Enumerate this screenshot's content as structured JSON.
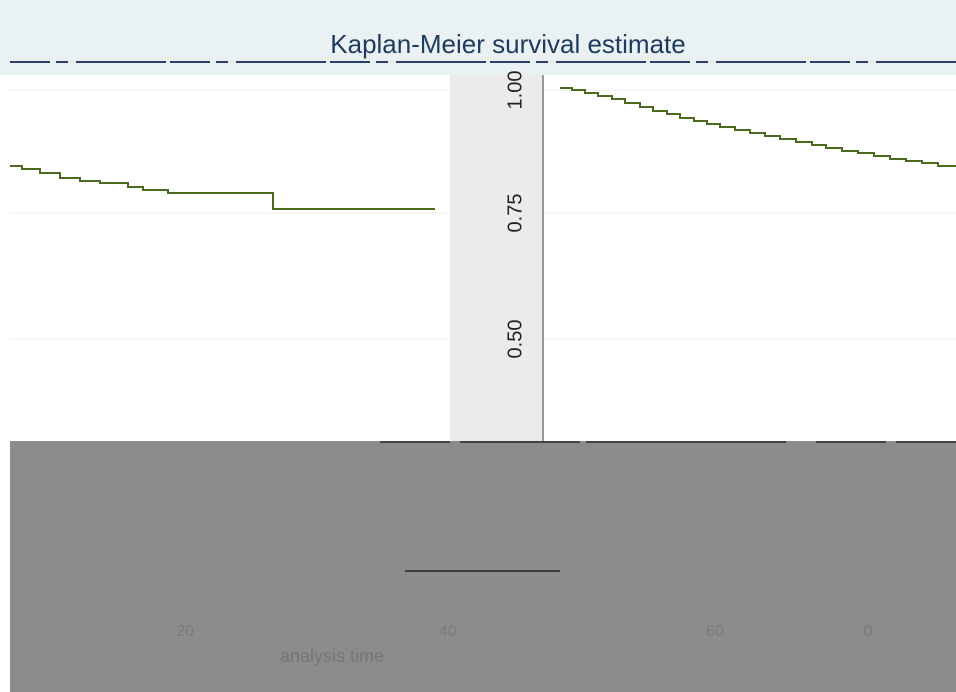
{
  "title": "Kaplan-Meier survival estimate",
  "y_axis": {
    "ticks": [
      "1.00",
      "0.75",
      "0.50"
    ]
  },
  "x_axis": {
    "ticks": [
      "20",
      "40",
      "60",
      "0"
    ],
    "title": "analysis time"
  }
}
